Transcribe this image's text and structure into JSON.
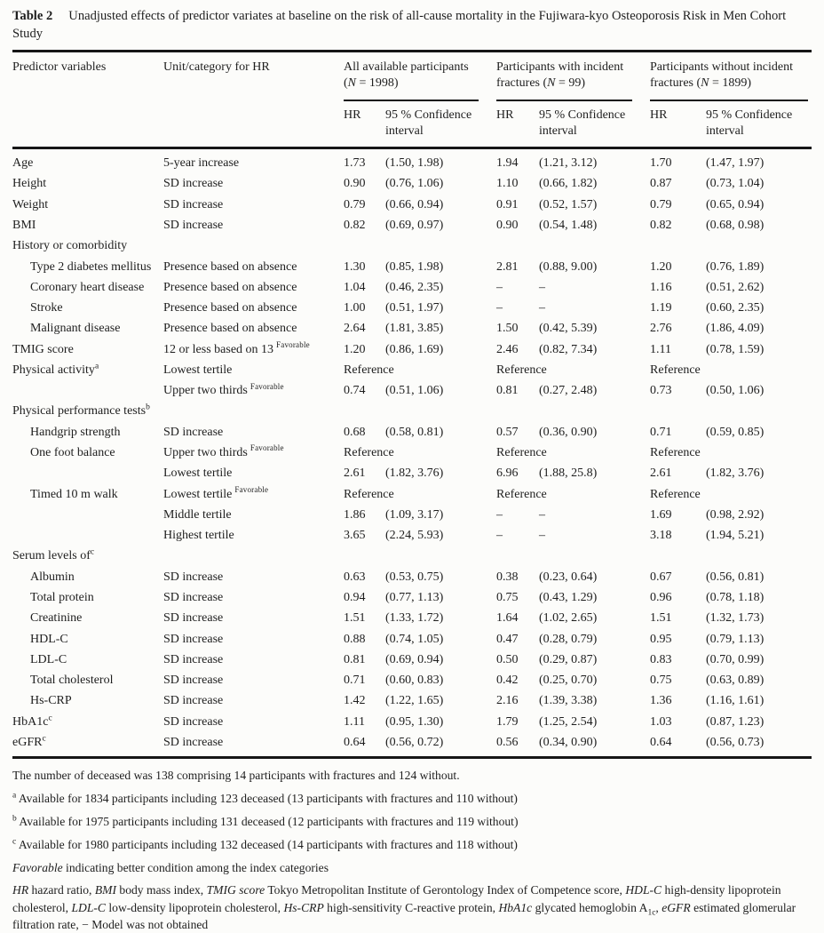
{
  "title": {
    "bold": "Table 2",
    "text": "Unadjusted effects of predictor variates at baseline on the risk of all-cause mortality in the Fujiwara-kyo Osteoporosis Risk in Men Cohort Study"
  },
  "table": {
    "col_headers": {
      "predictor": "Predictor variables",
      "unit": "Unit/category for HR",
      "hr": "HR",
      "ci": "95 % Confidence interval"
    },
    "groups": [
      {
        "label_segments": [
          {
            "t": "All available participants ("
          },
          {
            "t": "N",
            "i": true
          },
          {
            "t": " = 1998)"
          }
        ]
      },
      {
        "label_segments": [
          {
            "t": "Participants with incident fractures ("
          },
          {
            "t": "N",
            "i": true
          },
          {
            "t": " = 99)"
          }
        ]
      },
      {
        "label_segments": [
          {
            "t": "Participants without incident fractures ("
          },
          {
            "t": "N",
            "i": true
          },
          {
            "t": " = 1899)"
          }
        ]
      }
    ],
    "reference_label": "Reference",
    "rows": [
      {
        "label": "Age",
        "unit": "5-year increase",
        "cells": [
          "1.73",
          "(1.50, 1.98)",
          "1.94",
          "(1.21, 3.12)",
          "1.70",
          "(1.47, 1.97)"
        ]
      },
      {
        "label": "Height",
        "unit": "SD increase",
        "cells": [
          "0.90",
          "(0.76, 1.06)",
          "1.10",
          "(0.66, 1.82)",
          "0.87",
          "(0.73, 1.04)"
        ]
      },
      {
        "label": "Weight",
        "unit": "SD increase",
        "cells": [
          "0.79",
          "(0.66, 0.94)",
          "0.91",
          "(0.52, 1.57)",
          "0.79",
          "(0.65, 0.94)"
        ]
      },
      {
        "label": "BMI",
        "unit": "SD increase",
        "cells": [
          "0.82",
          "(0.69, 0.97)",
          "0.90",
          "(0.54, 1.48)",
          "0.82",
          "(0.68, 0.98)"
        ]
      },
      {
        "label": "History or comorbidity",
        "section": true
      },
      {
        "label": "Type 2 diabetes mellitus",
        "indent": true,
        "unit": "Presence based on absence",
        "cells": [
          "1.30",
          "(0.85, 1.98)",
          "2.81",
          "(0.88, 9.00)",
          "1.20",
          "(0.76, 1.89)"
        ]
      },
      {
        "label": "Coronary heart disease",
        "indent": true,
        "unit": "Presence based on absence",
        "cells": [
          "1.04",
          "(0.46, 2.35)",
          "–",
          "–",
          "1.16",
          "(0.51, 2.62)"
        ]
      },
      {
        "label": "Stroke",
        "indent": true,
        "unit": "Presence based on absence",
        "cells": [
          "1.00",
          "(0.51, 1.97)",
          "–",
          "–",
          "1.19",
          "(0.60, 2.35)"
        ]
      },
      {
        "label": "Malignant disease",
        "indent": true,
        "unit": "Presence based on absence",
        "cells": [
          "2.64",
          "(1.81, 3.85)",
          "1.50",
          "(0.42, 5.39)",
          "2.76",
          "(1.86, 4.09)"
        ]
      },
      {
        "label": "TMIG score",
        "unit": "12 or less based on 13",
        "unit_sup": "Favorable",
        "cells": [
          "1.20",
          "(0.86, 1.69)",
          "2.46",
          "(0.82, 7.34)",
          "1.11",
          "(0.78, 1.59)"
        ]
      },
      {
        "label": "Physical activity",
        "label_sup": "a",
        "unit": "Lowest tertile",
        "ref": true
      },
      {
        "label": "",
        "unit": "Upper two thirds",
        "unit_sup": "Favorable",
        "cells": [
          "0.74",
          "(0.51, 1.06)",
          "0.81",
          "(0.27, 2.48)",
          "0.73",
          "(0.50, 1.06)"
        ]
      },
      {
        "label": "Physical performance tests",
        "label_sup": "b",
        "section": true
      },
      {
        "label": "Handgrip strength",
        "indent": true,
        "unit": "SD increase",
        "cells": [
          "0.68",
          "(0.58, 0.81)",
          "0.57",
          "(0.36, 0.90)",
          "0.71",
          "(0.59, 0.85)"
        ]
      },
      {
        "label": "One foot balance",
        "indent": true,
        "unit": "Upper two thirds",
        "unit_sup": "Favorable",
        "ref": true
      },
      {
        "label": "",
        "unit": "Lowest tertile",
        "cells": [
          "2.61",
          "(1.82, 3.76)",
          "6.96",
          "(1.88, 25.8)",
          "2.61",
          "(1.82, 3.76)"
        ]
      },
      {
        "label": "Timed 10 m walk",
        "indent": true,
        "unit": "Lowest tertile",
        "unit_sup": "Favorable",
        "ref": true
      },
      {
        "label": "",
        "unit": "Middle tertile",
        "cells": [
          "1.86",
          "(1.09, 3.17)",
          "–",
          "–",
          "1.69",
          "(0.98, 2.92)"
        ]
      },
      {
        "label": "",
        "unit": "Highest tertile",
        "cells": [
          "3.65",
          "(2.24, 5.93)",
          "–",
          "–",
          "3.18",
          "(1.94, 5.21)"
        ]
      },
      {
        "label": "Serum levels of",
        "label_sup": "c",
        "section": true
      },
      {
        "label": "Albumin",
        "indent": true,
        "unit": "SD increase",
        "cells": [
          "0.63",
          "(0.53, 0.75)",
          "0.38",
          "(0.23, 0.64)",
          "0.67",
          "(0.56, 0.81)"
        ]
      },
      {
        "label": "Total protein",
        "indent": true,
        "unit": "SD increase",
        "cells": [
          "0.94",
          "(0.77, 1.13)",
          "0.75",
          "(0.43, 1.29)",
          "0.96",
          "(0.78, 1.18)"
        ]
      },
      {
        "label": "Creatinine",
        "indent": true,
        "unit": "SD increase",
        "cells": [
          "1.51",
          "(1.33, 1.72)",
          "1.64",
          "(1.02, 2.65)",
          "1.51",
          "(1.32, 1.73)"
        ]
      },
      {
        "label": "HDL-C",
        "indent": true,
        "unit": "SD increase",
        "cells": [
          "0.88",
          "(0.74, 1.05)",
          "0.47",
          "(0.28, 0.79)",
          "0.95",
          "(0.79, 1.13)"
        ]
      },
      {
        "label": "LDL-C",
        "indent": true,
        "unit": "SD increase",
        "cells": [
          "0.81",
          "(0.69, 0.94)",
          "0.50",
          "(0.29, 0.87)",
          "0.83",
          "(0.70, 0.99)"
        ]
      },
      {
        "label": "Total cholesterol",
        "indent": true,
        "unit": "SD increase",
        "cells": [
          "0.71",
          "(0.60, 0.83)",
          "0.42",
          "(0.25, 0.70)",
          "0.75",
          "(0.63, 0.89)"
        ]
      },
      {
        "label": "Hs-CRP",
        "indent": true,
        "unit": "SD increase",
        "cells": [
          "1.42",
          "(1.22, 1.65)",
          "2.16",
          "(1.39, 3.38)",
          "1.36",
          "(1.16, 1.61)"
        ]
      },
      {
        "label": "HbA1c",
        "label_sup": "c",
        "unit": "SD increase",
        "cells": [
          "1.11",
          "(0.95, 1.30)",
          "1.79",
          "(1.25, 2.54)",
          "1.03",
          "(0.87, 1.23)"
        ]
      },
      {
        "label": "eGFR",
        "label_sup": "c",
        "unit": "SD increase",
        "cells": [
          "0.64",
          "(0.56, 0.72)",
          "0.56",
          "(0.34, 0.90)",
          "0.64",
          "(0.56, 0.73)"
        ]
      }
    ]
  },
  "footnotes": [
    [
      {
        "t": "The number of deceased was 138 comprising 14 participants with fractures and 124 without."
      }
    ],
    [
      {
        "t": "a",
        "sup": true
      },
      {
        "t": " Available for 1834 participants including 123 deceased (13 participants with fractures and 110 without)"
      }
    ],
    [
      {
        "t": "b",
        "sup": true
      },
      {
        "t": " Available for 1975 participants including 131 deceased (12 participants with fractures and 119 without)"
      }
    ],
    [
      {
        "t": "c",
        "sup": true
      },
      {
        "t": " Available for 1980 participants including 132 deceased (14 participants with fractures and 118 without)"
      }
    ],
    [
      {
        "t": "Favorable",
        "i": true
      },
      {
        "t": " indicating better condition among the index categories"
      }
    ],
    [
      {
        "t": "HR",
        "i": true
      },
      {
        "t": " hazard ratio, "
      },
      {
        "t": "BMI",
        "i": true
      },
      {
        "t": " body mass index, "
      },
      {
        "t": "TMIG score",
        "i": true
      },
      {
        "t": " Tokyo Metropolitan Institute of Gerontology Index of Competence score, "
      },
      {
        "t": "HDL-C",
        "i": true
      },
      {
        "t": " high-density lipoprotein cholesterol, "
      },
      {
        "t": "LDL-C",
        "i": true
      },
      {
        "t": " low-density lipoprotein cholesterol, "
      },
      {
        "t": "Hs-CRP",
        "i": true
      },
      {
        "t": " high-sensitivity C-reactive protein, "
      },
      {
        "t": "HbA1c",
        "i": true
      },
      {
        "t": " glycated hemoglobin A"
      },
      {
        "t": "1c",
        "sub": true
      },
      {
        "t": ", "
      },
      {
        "t": "eGFR",
        "i": true
      },
      {
        "t": " estimated glomerular filtration rate, − Model was not obtained"
      }
    ]
  ]
}
